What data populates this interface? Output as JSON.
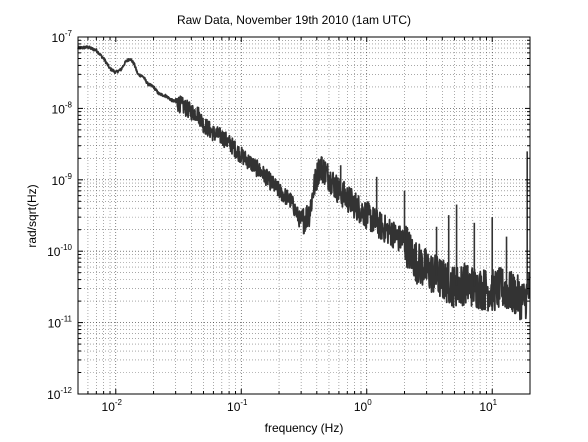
{
  "chart_data": {
    "type": "line",
    "title": "Raw Data, November 19th 2010 (1am UTC)",
    "xlabel": "frequency (Hz)",
    "ylabel": "rad/sqrt(Hz)",
    "xscale": "log",
    "yscale": "log",
    "xlim": [
      0.005,
      20
    ],
    "ylim": [
      1e-12,
      1e-07
    ],
    "grid": true,
    "x_ticks": [
      {
        "value": 0.01,
        "base": "10",
        "exp": "-2"
      },
      {
        "value": 0.1,
        "base": "10",
        "exp": "-1"
      },
      {
        "value": 1,
        "base": "10",
        "exp": "0"
      },
      {
        "value": 10,
        "base": "10",
        "exp": "1"
      }
    ],
    "y_ticks": [
      {
        "value": 1e-07,
        "base": "10",
        "exp": "-7"
      },
      {
        "value": 1e-08,
        "base": "10",
        "exp": "-8"
      },
      {
        "value": 1e-09,
        "base": "10",
        "exp": "-9"
      },
      {
        "value": 1e-10,
        "base": "10",
        "exp": "-10"
      },
      {
        "value": 1e-11,
        "base": "10",
        "exp": "-11"
      },
      {
        "value": 1e-12,
        "base": "10",
        "exp": "-12"
      }
    ],
    "line_color": "#333333",
    "series": [
      {
        "x": [
          0.005,
          0.006,
          0.007,
          0.008,
          0.009,
          0.01,
          0.011,
          0.012,
          0.013,
          0.014,
          0.015,
          0.0165,
          0.018,
          0.02,
          0.022,
          0.025,
          0.028,
          0.031,
          0.035,
          0.04,
          0.045,
          0.05,
          0.06,
          0.07,
          0.08,
          0.1,
          0.12,
          0.15,
          0.2,
          0.25,
          0.3,
          0.35,
          0.38,
          0.42,
          0.45,
          0.5,
          0.6,
          0.8,
          1.0,
          1.3,
          1.6,
          1.8,
          2.0,
          2.2,
          2.5,
          3.0,
          4.0,
          5.0,
          6.0,
          8.0,
          10.0,
          12.0,
          15.0,
          18.0,
          20.0
        ],
        "y": [
          7e-08,
          7.2e-08,
          6.5e-08,
          5e-08,
          3.6e-08,
          3.2e-08,
          3.5e-08,
          4.5e-08,
          5e-08,
          4.2e-08,
          3e-08,
          2.8e-08,
          2.2e-08,
          2e-08,
          1.6e-08,
          1.5e-08,
          1.3e-08,
          1.2e-08,
          1.05e-08,
          9e-09,
          8.5e-09,
          6e-09,
          4.5e-09,
          4e-09,
          3.3e-09,
          2.2e-09,
          1.7e-09,
          1.2e-09,
          7e-10,
          5e-10,
          2.5e-10,
          3.5e-10,
          8e-10,
          1.5e-09,
          1.4e-09,
          1.1e-09,
          7e-10,
          4.5e-10,
          3.2e-10,
          2.2e-10,
          1.8e-10,
          1.5e-10,
          1.4e-10,
          1e-10,
          7e-11,
          5.5e-11,
          4e-11,
          3.2e-11,
          3.5e-11,
          3e-11,
          2.8e-11,
          3e-11,
          2.5e-11,
          2e-11,
          3e-11
        ]
      }
    ],
    "spikes": [
      {
        "x": 0.44,
        "y": 2.1e-09
      },
      {
        "x": 0.62,
        "y": 1.6e-09
      },
      {
        "x": 1.2,
        "y": 1.1e-09
      },
      {
        "x": 2.0,
        "y": 7e-10
      },
      {
        "x": 3.6,
        "y": 2.2e-10
      },
      {
        "x": 4.5,
        "y": 3.2e-10
      },
      {
        "x": 5.2,
        "y": 4.5e-10
      },
      {
        "x": 7.2,
        "y": 2.5e-10
      },
      {
        "x": 10.0,
        "y": 3e-10
      },
      {
        "x": 13.0,
        "y": 1.6e-10
      },
      {
        "x": 19.0,
        "y": 2.5e-09
      }
    ]
  }
}
